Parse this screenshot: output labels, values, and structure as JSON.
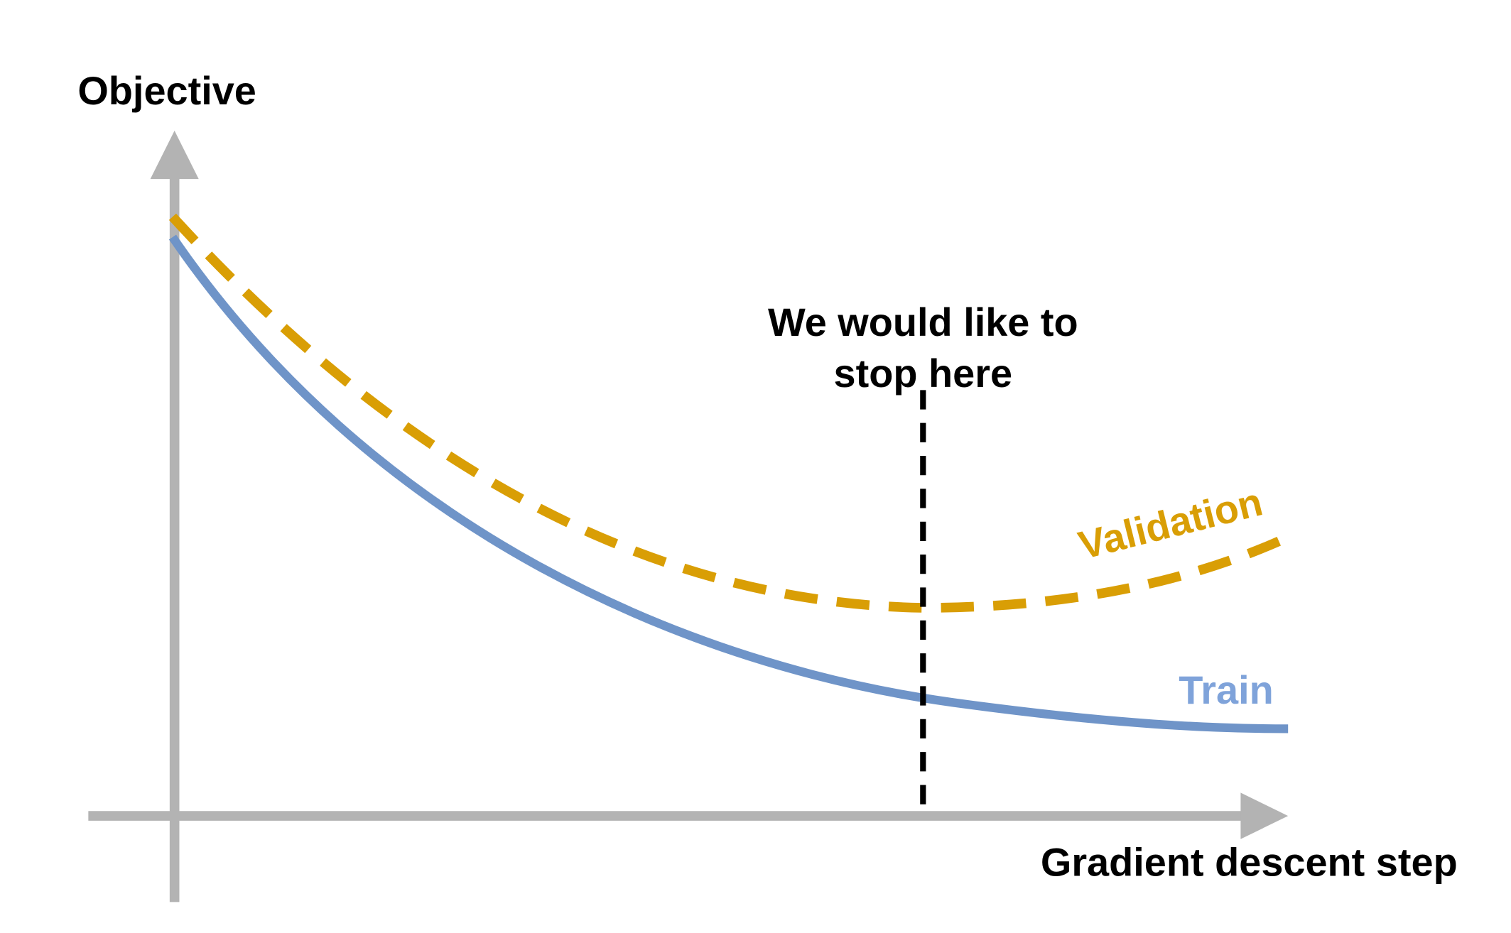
{
  "labels": {
    "y_axis": "Objective",
    "x_axis": "Gradient descent step",
    "annotation_line1": "We would like to",
    "annotation_line2": "stop here"
  },
  "series": [
    {
      "name": "Validation",
      "color": "#D99E05",
      "style": "dashed"
    },
    {
      "name": "Train",
      "color": "#6F94C8",
      "label_color": "#7FA3DA",
      "style": "solid"
    }
  ],
  "colors": {
    "axis": "#B3B3B3",
    "stop_line": "#000000",
    "text": "#000000"
  }
}
